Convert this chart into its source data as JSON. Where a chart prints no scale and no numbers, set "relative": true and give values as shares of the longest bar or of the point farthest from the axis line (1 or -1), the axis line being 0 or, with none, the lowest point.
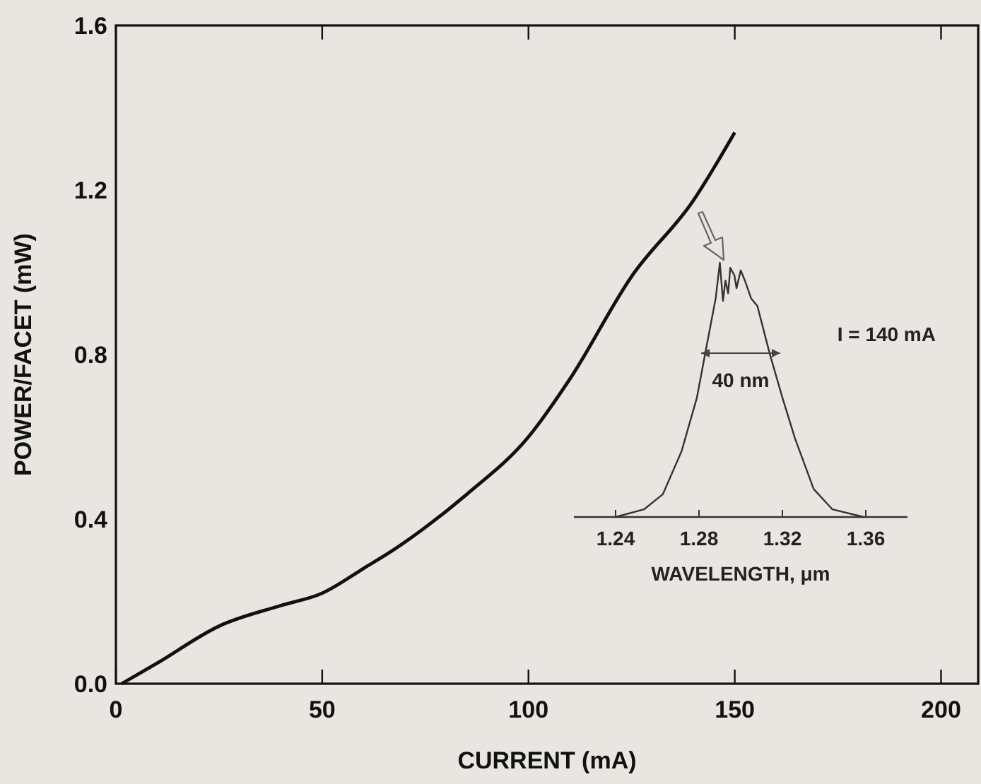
{
  "chart_data": [
    {
      "type": "line",
      "xlabel": "CURRENT  (mA)",
      "ylabel": "POWER/FACET  (mW)",
      "xlim": [
        0,
        209
      ],
      "ylim": [
        0,
        1.6
      ],
      "xticks": [
        0,
        50,
        100,
        150,
        200
      ],
      "yticks": [
        {
          "value": 0,
          "label": "0.0"
        },
        0.4,
        0.8,
        1.2,
        1.6
      ],
      "grid": false,
      "series": [
        {
          "color": "#111111",
          "x": [
            1.4,
            10,
            25,
            40,
            50,
            60,
            68,
            75,
            85,
            100,
            110,
            125,
            140,
            150
          ],
          "values": [
            0,
            0.05,
            0.14,
            0.19,
            0.22,
            0.28,
            0.33,
            0.38,
            0.46,
            0.6,
            0.74,
            0.99,
            1.175,
            1.34
          ]
        }
      ]
    },
    {
      "type": "line",
      "relative": true,
      "xlabel": "WAVELENGTH, μm",
      "xlim": [
        1.22,
        1.38
      ],
      "xticks": [
        1.24,
        1.28,
        1.32,
        1.36
      ],
      "tick_labels": "x",
      "annotations": [
        "I = 140 mA",
        "40 nm"
      ],
      "series": [
        {
          "color": "#333333",
          "x": [
            1.24,
            1.2536,
            1.2627,
            1.2717,
            1.279,
            1.2836,
            1.288,
            1.29,
            1.2915,
            1.2927,
            1.294,
            1.295,
            1.297,
            1.298,
            1.3,
            1.302,
            1.305,
            1.308,
            1.314,
            1.32,
            1.326,
            1.335,
            1.344,
            1.359
          ],
          "values": [
            0,
            0.03,
            0.09,
            0.26,
            0.47,
            0.67,
            0.86,
            1,
            0.85,
            0.93,
            0.88,
            0.98,
            0.95,
            0.9,
            0.97,
            0.93,
            0.86,
            0.83,
            0.64,
            0.47,
            0.31,
            0.11,
            0.03,
            0
          ]
        }
      ]
    }
  ]
}
